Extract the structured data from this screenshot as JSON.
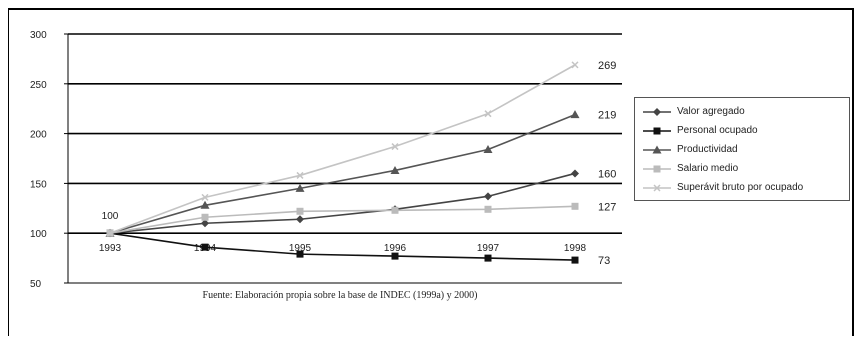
{
  "chart_data": {
    "type": "line",
    "x": [
      "1993",
      "1994",
      "1995",
      "1996",
      "1997",
      "1998"
    ],
    "ylim": [
      50,
      300
    ],
    "yticks": [
      50,
      100,
      150,
      200,
      250,
      300
    ],
    "grid": "horizontal",
    "legend_position": "right",
    "series": [
      {
        "name": "Valor agregado",
        "values": [
          100,
          110,
          114,
          124,
          137,
          160
        ],
        "color": "#444444",
        "marker": "diamond",
        "end_label": "160"
      },
      {
        "name": "Personal ocupado",
        "values": [
          100,
          86,
          79,
          77,
          75,
          73
        ],
        "color": "#111111",
        "marker": "square",
        "end_label": "73"
      },
      {
        "name": "Productividad",
        "values": [
          100,
          128,
          145,
          163,
          184,
          219
        ],
        "color": "#555555",
        "marker": "triangle",
        "end_label": "219"
      },
      {
        "name": "Salario medio",
        "values": [
          100,
          116,
          122,
          123,
          124,
          127
        ],
        "color": "#bbbbbb",
        "marker": "square",
        "end_label": "127"
      },
      {
        "name": "Superávit bruto por ocupado",
        "values": [
          100,
          136,
          158,
          187,
          220,
          269
        ],
        "color": "#c4c4c4",
        "marker": "cross",
        "end_label": "269"
      }
    ],
    "start_label": "100",
    "source": "Fuente: Elaboración propia sobre la base de INDEC (1999a) y 2000)"
  }
}
